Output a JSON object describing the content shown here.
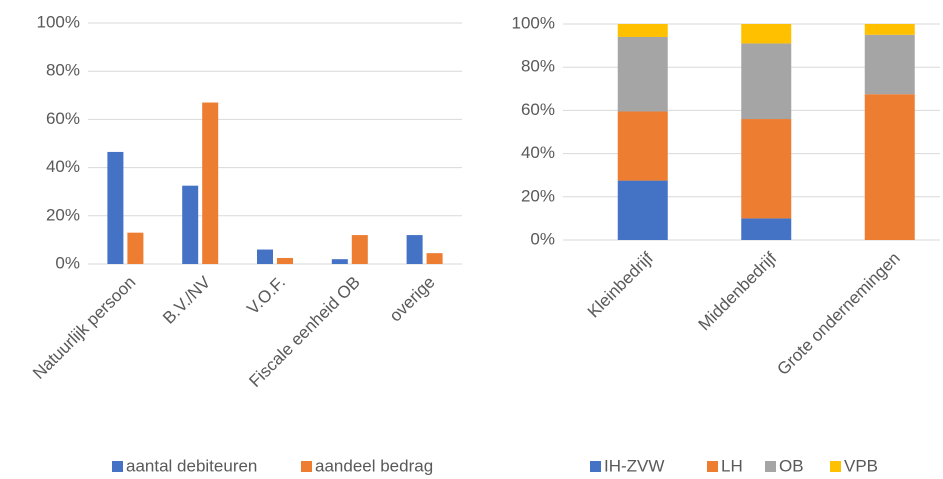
{
  "chart_data": [
    {
      "type": "bar",
      "categories": [
        "Natuurlijk persoon",
        "B.V./NV",
        "V.O.F.",
        "Fiscale eenheid OB",
        "overige"
      ],
      "series": [
        {
          "name": "aantal debiteuren",
          "color": "#4472c4",
          "values": [
            46.5,
            32.5,
            6,
            2,
            12
          ]
        },
        {
          "name": "aandeel bedrag",
          "color": "#ed7d31",
          "values": [
            13,
            67,
            2.5,
            12,
            4.5
          ]
        }
      ],
      "ylim": [
        0,
        100
      ],
      "yticks": [
        {
          "value": 0,
          "label": "0%"
        },
        {
          "value": 20,
          "label": "20%"
        },
        {
          "value": 40,
          "label": "40%"
        },
        {
          "value": 60,
          "label": "60%"
        },
        {
          "value": 80,
          "label": "80%"
        },
        {
          "value": 100,
          "label": "100%"
        }
      ],
      "grid": true,
      "legend": "bottom"
    },
    {
      "type": "stacked_bar",
      "categories": [
        "Kleinbedrijf",
        "Middenbedrijf",
        "Grote ondernemingen"
      ],
      "series": [
        {
          "name": "IH-ZVW",
          "color": "#4472c4",
          "values": [
            27.5,
            10,
            0
          ]
        },
        {
          "name": "LH",
          "color": "#ed7d31",
          "values": [
            32,
            46,
            67.5
          ]
        },
        {
          "name": "OB",
          "color": "#a5a5a5",
          "values": [
            34.5,
            35,
            27.5
          ]
        },
        {
          "name": "VPB",
          "color": "#ffc000",
          "values": [
            6,
            9,
            5
          ]
        }
      ],
      "ylim": [
        0,
        100
      ],
      "yticks": [
        {
          "value": 0,
          "label": "0%"
        },
        {
          "value": 20,
          "label": "20%"
        },
        {
          "value": 40,
          "label": "40%"
        },
        {
          "value": 60,
          "label": "60%"
        },
        {
          "value": 80,
          "label": "80%"
        },
        {
          "value": 100,
          "label": "100%"
        }
      ],
      "grid": true,
      "legend": "bottom"
    }
  ]
}
